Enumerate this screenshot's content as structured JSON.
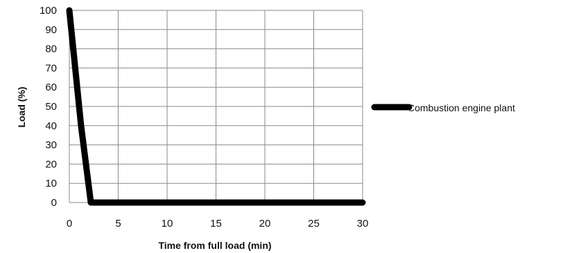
{
  "chart_data": {
    "type": "line",
    "xlabel": "Time from full load (min)",
    "ylabel": "Load (%)",
    "xlim": [
      0,
      30
    ],
    "ylim": [
      0,
      100
    ],
    "xticks": [
      0,
      5,
      10,
      15,
      20,
      25,
      30
    ],
    "yticks": [
      0,
      10,
      20,
      30,
      40,
      50,
      60,
      70,
      80,
      90,
      100
    ],
    "grid": true,
    "legend_position": "right",
    "series": [
      {
        "name": "Combustion engine plant",
        "color": "#000000",
        "x": [
          0,
          1.2,
          2.2,
          30
        ],
        "y": [
          100,
          40,
          0,
          0
        ]
      }
    ]
  }
}
